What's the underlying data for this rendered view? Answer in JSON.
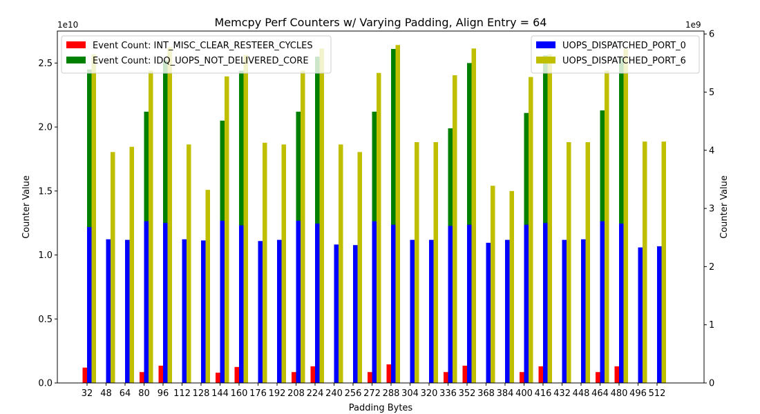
{
  "chart_data": {
    "type": "bar",
    "title": "Memcpy Perf Counters w/ Varying Padding, Align Entry = 64",
    "xlabel": "Padding Bytes",
    "ylabel_left": "Counter Value",
    "ylabel_right": "Counter Value",
    "left_multiplier": "1e10",
    "right_multiplier": "1e9",
    "ylim_left": [
      0,
      27500000000.0
    ],
    "ylim_right": [
      0,
      6050000000.0
    ],
    "left_ticks": [
      0,
      5000000000.0,
      10000000000.0,
      15000000000.0,
      20000000000.0,
      25000000000.0
    ],
    "left_tick_labels": [
      "0.0",
      "0.5",
      "1.0",
      "1.5",
      "2.0",
      "2.5"
    ],
    "right_ticks": [
      0,
      1000000000.0,
      2000000000.0,
      3000000000.0,
      4000000000.0,
      5000000000.0,
      6000000000.0
    ],
    "right_tick_labels": [
      "0",
      "1",
      "2",
      "3",
      "4",
      "5",
      "6"
    ],
    "grid": false,
    "categories": [
      "32",
      "48",
      "64",
      "80",
      "96",
      "112",
      "128",
      "144",
      "160",
      "176",
      "192",
      "208",
      "224",
      "240",
      "256",
      "272",
      "288",
      "304",
      "320",
      "336",
      "352",
      "368",
      "384",
      "400",
      "416",
      "432",
      "448",
      "464",
      "480",
      "496",
      "512"
    ],
    "series": [
      {
        "name": "Event Count: INT_MISC_CLEAR_RESTEER_CYCLES",
        "axis": "left",
        "color": "#ff0000",
        "values": [
          1200000000.0,
          0,
          0,
          850000000.0,
          1350000000.0,
          0,
          0,
          800000000.0,
          1250000000.0,
          0,
          0,
          850000000.0,
          1300000000.0,
          0,
          0,
          850000000.0,
          1450000000.0,
          0,
          0,
          850000000.0,
          1350000000.0,
          0,
          0,
          850000000.0,
          1300000000.0,
          0,
          0,
          850000000.0,
          1300000000.0,
          0,
          0
        ]
      },
      {
        "name": "Event Count: IDQ_UOPS_NOT_DELIVERED_CORE",
        "axis": "left",
        "color": "#008000",
        "values": [
          24500000000.0,
          1100000000.0,
          3200000000.0,
          21200000000.0,
          25200000000.0,
          1600000000.0,
          1300000000.0,
          20500000000.0,
          24400000000.0,
          1150000000.0,
          3650000000.0,
          21200000000.0,
          25500000000.0,
          1050000000.0,
          1050000000.0,
          21200000000.0,
          26100000000.0,
          3650000000.0,
          1400000000.0,
          19900000000.0,
          25000000000.0,
          5300000000.0,
          900000000.0,
          21100000000.0,
          25600000000.0,
          1550000000.0,
          1900000000.0,
          21300000000.0,
          25400000000.0,
          4650000000.0,
          1200000000.0
        ]
      },
      {
        "name": "UOPS_DISPATCHED_PORT_0",
        "axis": "right",
        "color": "#0000ff",
        "values": [
          2680000000.0,
          2470000000.0,
          2460000000.0,
          2780000000.0,
          2750000000.0,
          2470000000.0,
          2450000000.0,
          2790000000.0,
          2710000000.0,
          2440000000.0,
          2460000000.0,
          2790000000.0,
          2740000000.0,
          2380000000.0,
          2370000000.0,
          2780000000.0,
          2720000000.0,
          2460000000.0,
          2460000000.0,
          2700000000.0,
          2720000000.0,
          2410000000.0,
          2460000000.0,
          2720000000.0,
          2750000000.0,
          2460000000.0,
          2470000000.0,
          2780000000.0,
          2740000000.0,
          2330000000.0,
          2350000000.0
        ]
      },
      {
        "name": "UOPS_DISPATCHED_PORT_6",
        "axis": "right",
        "color": "#bfbf00",
        "values": [
          5650000000.0,
          3970000000.0,
          4060000000.0,
          5370000000.0,
          5770000000.0,
          4100000000.0,
          3320000000.0,
          5270000000.0,
          5640000000.0,
          4130000000.0,
          4100000000.0,
          5370000000.0,
          5750000000.0,
          4100000000.0,
          3970000000.0,
          5330000000.0,
          5810000000.0,
          4140000000.0,
          4140000000.0,
          5290000000.0,
          5750000000.0,
          3390000000.0,
          3300000000.0,
          5260000000.0,
          5650000000.0,
          4140000000.0,
          4140000000.0,
          5370000000.0,
          5740000000.0,
          4150000000.0,
          4150000000.0
        ]
      }
    ],
    "legends": [
      {
        "position": "top-left",
        "series": [
          0,
          1
        ]
      },
      {
        "position": "top-right",
        "series": [
          2,
          3
        ]
      }
    ]
  }
}
